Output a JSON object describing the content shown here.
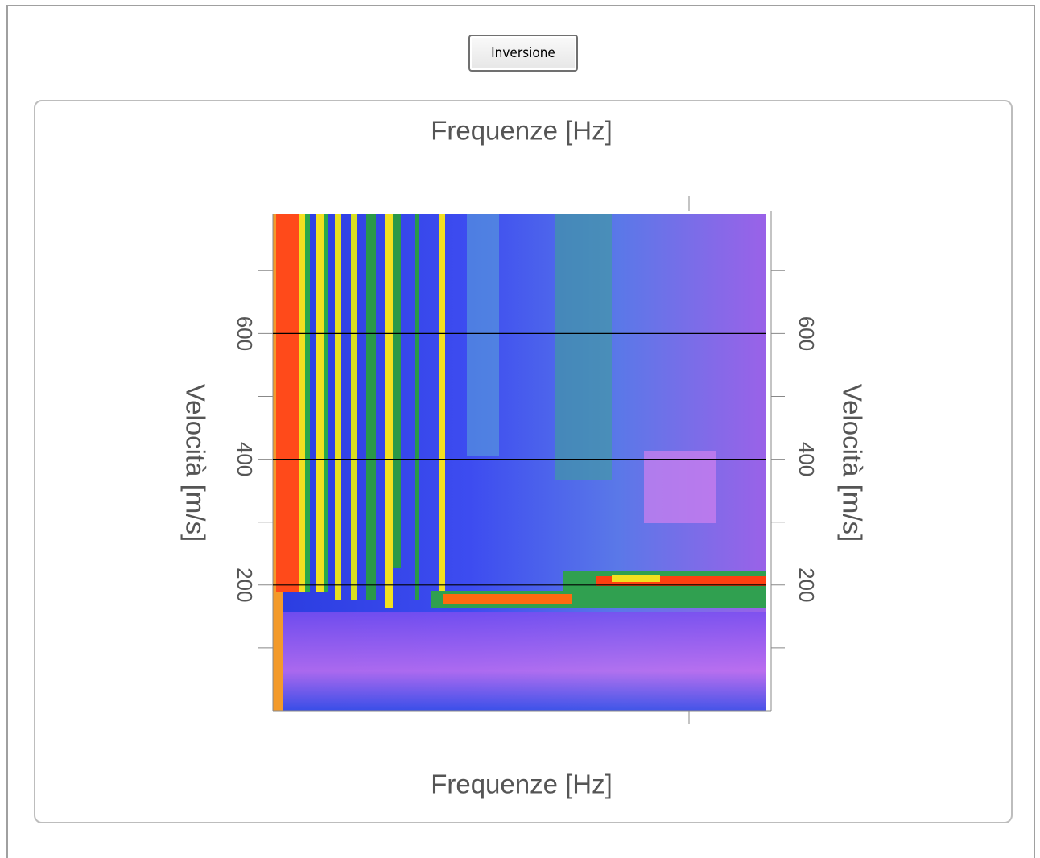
{
  "button": {
    "label": "Inversione"
  },
  "chart_data": {
    "type": "heatmap",
    "title": "Frequenze [Hz]",
    "xlabel": "Frequenze [Hz]",
    "ylabel": "Velocità [m/s]",
    "y2label": "Velocità [m/s]",
    "ylim": [
      0,
      790
    ],
    "yticks": [
      200,
      400,
      600
    ],
    "yminor_ticks": [
      100,
      300,
      500,
      700
    ],
    "grid": true
  }
}
